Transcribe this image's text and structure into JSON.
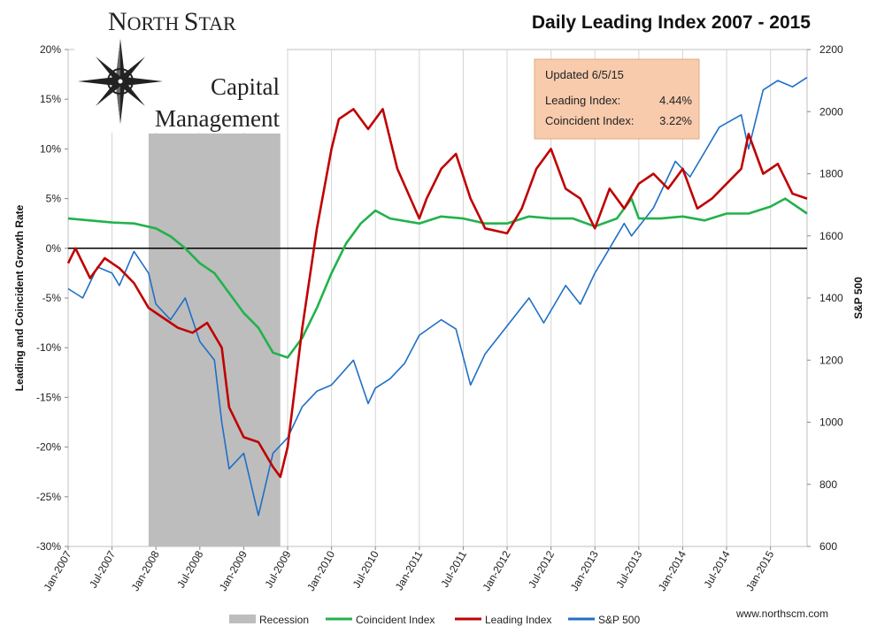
{
  "logo": {
    "line1_first": "N",
    "line1_rest": "ORTH ",
    "line1_second": "S",
    "line1_end": "TAR",
    "line2": "Capital",
    "line3": "Management"
  },
  "website": "www.northscm.com",
  "colors": {
    "recession": "#bdbdbd",
    "coincident": "#22b24c",
    "leading": "#c00000",
    "sp500": "#1f6fc6",
    "logo_red": "#9b1c1c",
    "infobox_fill": "#f8cbad"
  },
  "infobox": {
    "updated": "Updated 6/5/15",
    "leading_label": "Leading Index:",
    "leading_value": "4.44%",
    "coincident_label": "Coincident Index:",
    "coincident_value": "3.22%"
  },
  "chart_data": {
    "type": "line",
    "title": "Daily Leading Index 2007 - 2015",
    "ylabel": "Leading and Coincident Growth Rate",
    "y2label": "S&P 500",
    "xlim": [
      "2007-01",
      "2015-06"
    ],
    "ylim": [
      -30,
      20
    ],
    "y2lim": [
      600,
      2200
    ],
    "x_tick_labels": [
      "Jan-2007",
      "Jul-2007",
      "Jan-2008",
      "Jul-2008",
      "Jan-2009",
      "Jul-2009",
      "Jan-2010",
      "Jul-2010",
      "Jan-2011",
      "Jul-2011",
      "Jan-2012",
      "Jul-2012",
      "Jan-2013",
      "Jul-2013",
      "Jan-2014",
      "Jul-2014",
      "Jan-2015"
    ],
    "y_tick_labels": [
      "20%",
      "15%",
      "10%",
      "5%",
      "0%",
      "-5%",
      "-10%",
      "-15%",
      "-20%",
      "-25%",
      "-30%"
    ],
    "y2_tick_labels": [
      "2200",
      "2000",
      "1800",
      "1600",
      "1400",
      "1200",
      "1000",
      "800",
      "600"
    ],
    "grid": "vertical",
    "zero_line": 0,
    "legend": "bottom",
    "recession": {
      "name": "Recession",
      "start": "2007-12",
      "end": "2009-06"
    },
    "series": [
      {
        "name": "Coincident Index",
        "axis": "left",
        "x": [
          "2007-01",
          "2007-04",
          "2007-07",
          "2007-10",
          "2008-01",
          "2008-03",
          "2008-05",
          "2008-07",
          "2008-09",
          "2008-11",
          "2009-01",
          "2009-03",
          "2009-05",
          "2009-07",
          "2009-09",
          "2009-11",
          "2010-01",
          "2010-03",
          "2010-05",
          "2010-07",
          "2010-09",
          "2011-01",
          "2011-04",
          "2011-07",
          "2011-10",
          "2012-01",
          "2012-04",
          "2012-07",
          "2012-10",
          "2013-01",
          "2013-04",
          "2013-06",
          "2013-07",
          "2013-10",
          "2014-01",
          "2014-04",
          "2014-07",
          "2014-10",
          "2015-01",
          "2015-03",
          "2015-06"
        ],
        "values": [
          3.0,
          2.8,
          2.6,
          2.5,
          2.0,
          1.2,
          0.0,
          -1.5,
          -2.5,
          -4.5,
          -6.5,
          -8.0,
          -10.5,
          -11.0,
          -9.0,
          -6.0,
          -2.5,
          0.5,
          2.5,
          3.8,
          3.0,
          2.5,
          3.2,
          3.0,
          2.5,
          2.5,
          3.2,
          3.0,
          3.0,
          2.2,
          3.0,
          5.0,
          3.0,
          3.0,
          3.2,
          2.8,
          3.5,
          3.5,
          4.2,
          5.0,
          3.5
        ]
      },
      {
        "name": "Leading Index",
        "axis": "left",
        "x": [
          "2007-01",
          "2007-02",
          "2007-04",
          "2007-06",
          "2007-08",
          "2007-10",
          "2007-12",
          "2008-02",
          "2008-04",
          "2008-06",
          "2008-08",
          "2008-10",
          "2008-11",
          "2009-01",
          "2009-03",
          "2009-05",
          "2009-06",
          "2009-07",
          "2009-09",
          "2009-11",
          "2010-01",
          "2010-02",
          "2010-04",
          "2010-06",
          "2010-08",
          "2010-10",
          "2011-01",
          "2011-02",
          "2011-04",
          "2011-06",
          "2011-08",
          "2011-10",
          "2012-01",
          "2012-03",
          "2012-05",
          "2012-07",
          "2012-09",
          "2012-11",
          "2013-01",
          "2013-03",
          "2013-05",
          "2013-07",
          "2013-09",
          "2013-11",
          "2014-01",
          "2014-03",
          "2014-05",
          "2014-07",
          "2014-09",
          "2014-10",
          "2014-12",
          "2015-02",
          "2015-04",
          "2015-06"
        ],
        "values": [
          -1.5,
          0.0,
          -3.0,
          -1.0,
          -2.0,
          -3.5,
          -6.0,
          -7.0,
          -8.0,
          -8.5,
          -7.5,
          -10.0,
          -16.0,
          -19.0,
          -19.5,
          -22.0,
          -23.0,
          -20.0,
          -8.0,
          2.0,
          10.0,
          13.0,
          14.0,
          12.0,
          14.0,
          8.0,
          3.0,
          5.0,
          8.0,
          9.5,
          5.0,
          2.0,
          1.5,
          4.0,
          8.0,
          10.0,
          6.0,
          5.0,
          2.0,
          6.0,
          4.0,
          6.5,
          7.5,
          6.0,
          8.0,
          4.0,
          5.0,
          6.5,
          8.0,
          11.5,
          7.5,
          8.5,
          5.5,
          5.0
        ]
      },
      {
        "name": "S&P 500",
        "axis": "right",
        "x": [
          "2007-01",
          "2007-03",
          "2007-05",
          "2007-07",
          "2007-08",
          "2007-10",
          "2007-12",
          "2008-01",
          "2008-03",
          "2008-05",
          "2008-07",
          "2008-09",
          "2008-10",
          "2008-11",
          "2009-01",
          "2009-03",
          "2009-05",
          "2009-07",
          "2009-09",
          "2009-11",
          "2010-01",
          "2010-04",
          "2010-06",
          "2010-07",
          "2010-09",
          "2010-11",
          "2011-01",
          "2011-04",
          "2011-06",
          "2011-08",
          "2011-10",
          "2012-01",
          "2012-04",
          "2012-06",
          "2012-09",
          "2012-11",
          "2013-01",
          "2013-03",
          "2013-05",
          "2013-06",
          "2013-09",
          "2013-12",
          "2014-02",
          "2014-04",
          "2014-06",
          "2014-09",
          "2014-10",
          "2014-12",
          "2015-02",
          "2015-04",
          "2015-06"
        ],
        "values": [
          1430,
          1400,
          1500,
          1480,
          1440,
          1550,
          1480,
          1380,
          1330,
          1400,
          1260,
          1200,
          1000,
          850,
          900,
          700,
          900,
          950,
          1050,
          1100,
          1120,
          1200,
          1060,
          1110,
          1140,
          1190,
          1280,
          1330,
          1300,
          1120,
          1220,
          1310,
          1400,
          1320,
          1440,
          1380,
          1480,
          1560,
          1640,
          1600,
          1690,
          1840,
          1790,
          1870,
          1950,
          1990,
          1880,
          2070,
          2100,
          2080,
          2110
        ]
      }
    ]
  }
}
